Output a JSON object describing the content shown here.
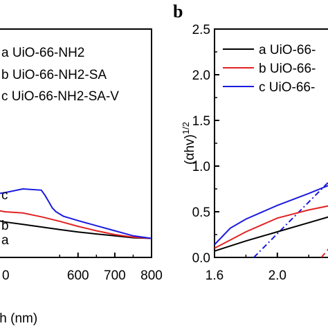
{
  "panel_labels": {
    "b": "b"
  },
  "chart_data": [
    {
      "type": "line",
      "panel": "a",
      "xlabel": "th (nm)",
      "xlim": [
        350,
        800
      ],
      "x_ticks": [
        "600",
        "700",
        "800"
      ],
      "x_ticks_partial": "0",
      "series": [
        {
          "name": "a UiO-66-NH2",
          "color": "#000000",
          "curve_label": "a",
          "x": [
            350,
            400,
            450,
            500,
            550,
            600,
            650,
            700,
            750,
            800
          ],
          "y": [
            0.62,
            0.56,
            0.52,
            0.48,
            0.44,
            0.4,
            0.37,
            0.34,
            0.31,
            0.3
          ]
        },
        {
          "name": "b UiO-66-NH2-SA",
          "color": "#e32222",
          "curve_label": "b",
          "x": [
            350,
            400,
            450,
            500,
            550,
            600,
            650,
            700,
            750,
            800
          ],
          "y": [
            0.78,
            0.72,
            0.7,
            0.64,
            0.57,
            0.49,
            0.42,
            0.36,
            0.32,
            0.3
          ]
        },
        {
          "name": "c UiO-66-NH2-SA-V",
          "color": "#1a1adf",
          "curve_label": "c",
          "x": [
            350,
            400,
            450,
            500,
            510,
            520,
            530,
            540,
            560,
            600,
            650,
            700,
            750,
            800
          ],
          "y": [
            0.98,
            1.02,
            1.08,
            1.06,
            0.98,
            0.88,
            0.78,
            0.72,
            0.65,
            0.58,
            0.5,
            0.42,
            0.34,
            0.3
          ]
        }
      ],
      "legend_placement": "top"
    },
    {
      "type": "line",
      "panel": "b",
      "ylabel": "(αhν)1/2",
      "ylabel_base": "(αhv)",
      "ylabel_exp": "1/2",
      "xlim": [
        1.6,
        2.6
      ],
      "ylim": [
        0.0,
        2.5
      ],
      "x_ticks": [
        "1.6",
        "2.0",
        "2"
      ],
      "y_ticks": [
        "0.0",
        "0.5",
        "1.0",
        "1.5",
        "2.0",
        "2.5"
      ],
      "series": [
        {
          "name": "a UiO-66-",
          "color": "#000000",
          "x": [
            1.6,
            1.8,
            2.0,
            2.2,
            2.4,
            2.5,
            2.6
          ],
          "y": [
            0.07,
            0.18,
            0.28,
            0.38,
            0.48,
            0.51,
            0.53
          ]
        },
        {
          "name": "b UiO-66-",
          "color": "#e32222",
          "x": [
            1.6,
            1.8,
            2.0,
            2.2,
            2.4,
            2.5,
            2.6
          ],
          "y": [
            0.1,
            0.28,
            0.43,
            0.52,
            0.59,
            0.62,
            0.65
          ]
        },
        {
          "name": "c UiO-66-",
          "color": "#1a1adf",
          "x": [
            1.6,
            1.7,
            1.8,
            2.0,
            2.2,
            2.4,
            2.5,
            2.58,
            2.6
          ],
          "y": [
            0.14,
            0.32,
            0.42,
            0.57,
            0.7,
            0.84,
            0.98,
            1.0,
            1.0
          ]
        }
      ],
      "tangents": [
        {
          "color": "#1a1adf",
          "style": "dash-dot",
          "x": [
            1.85,
            2.6
          ],
          "y": [
            0.0,
            1.3
          ]
        },
        {
          "color": "#e32222",
          "style": "dashed",
          "x": [
            2.28,
            2.6
          ],
          "y": [
            0.0,
            0.65
          ]
        }
      ],
      "legend_placement": "top"
    }
  ]
}
